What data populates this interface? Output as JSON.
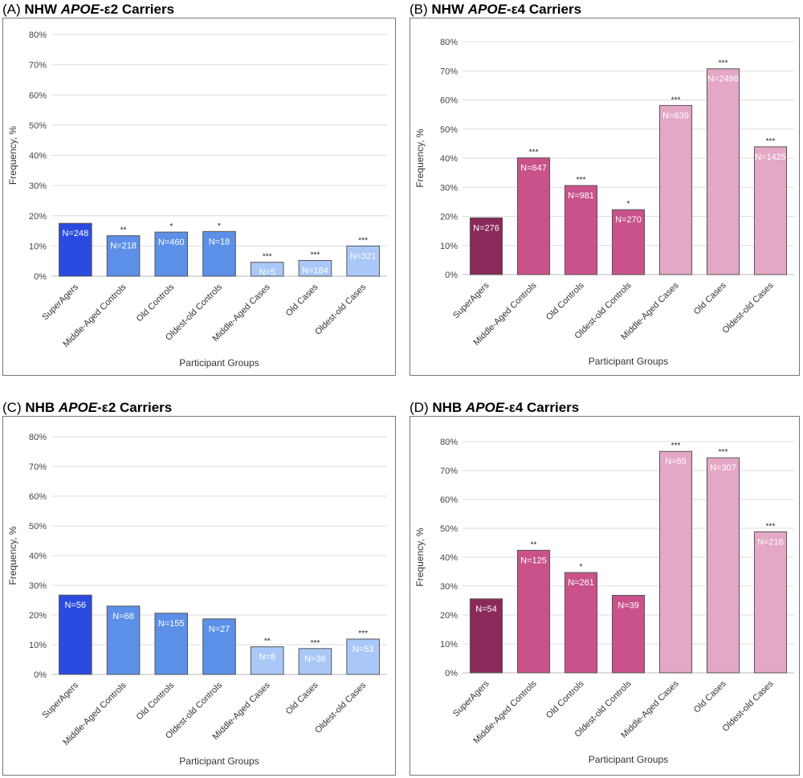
{
  "chart_data": [
    {
      "type": "bar",
      "panel_label": "(A)",
      "title_parts": [
        "NHW",
        "APOE",
        "-ε2 Carriers"
      ],
      "xlabel": "Participant Groups",
      "ylabel": "Frequency, %",
      "ylim": [
        0,
        80
      ],
      "yticks": [
        "0%",
        "10%",
        "20%",
        "30%",
        "40%",
        "50%",
        "60%",
        "70%",
        "80%"
      ],
      "grid": true,
      "categories": [
        "SuperAgers",
        "Middle-Aged Controls",
        "Old Controls",
        "Oldest-old Controls",
        "Middle-Aged Cases",
        "Old Cases",
        "Oldest-old Cases"
      ],
      "values": [
        17.5,
        13.4,
        14.6,
        14.8,
        4.6,
        5.2,
        10.0
      ],
      "n_labels": [
        "N=248",
        "N=218",
        "N=460",
        "N=18",
        "N=5",
        "N=184",
        "N=321"
      ],
      "significance": [
        "",
        "**",
        "*",
        "*",
        "***",
        "***",
        "***"
      ],
      "colors": [
        "#2b4be0",
        "#5c90e8",
        "#5c90e8",
        "#5c90e8",
        "#a9c8f8",
        "#a9c8f8",
        "#a9c8f8"
      ]
    },
    {
      "type": "bar",
      "panel_label": "(B)",
      "title_parts": [
        "NHW",
        "APOE",
        "-ε4 Carriers"
      ],
      "xlabel": "Participant Groups",
      "ylabel": "Frequency, %",
      "ylim": [
        0,
        80
      ],
      "yticks": [
        "0%",
        "10%",
        "20%",
        "30%",
        "40%",
        "50%",
        "60%",
        "70%",
        "80%"
      ],
      "grid": true,
      "categories": [
        "SuperAgers",
        "Middle-Aged Controls",
        "Old Controls",
        "Oldest-old Controls",
        "Middle-Aged Cases",
        "Old Cases",
        "Oldest-old Cases"
      ],
      "values": [
        19.5,
        40.1,
        30.6,
        22.3,
        58.1,
        70.7,
        43.9
      ],
      "n_labels": [
        "N=276",
        "N=647",
        "N=981",
        "N=270",
        "N=639",
        "N=2496",
        "N=1425"
      ],
      "significance": [
        "",
        "***",
        "***",
        "*",
        "***",
        "***",
        "***"
      ],
      "colors": [
        "#8a2a5a",
        "#c9528b",
        "#c9528b",
        "#c9528b",
        "#e4a7c5",
        "#e4a7c5",
        "#e4a7c5"
      ]
    },
    {
      "type": "bar",
      "panel_label": "(C)",
      "title_parts": [
        "NHB",
        "APOE",
        "-ε2 Carriers"
      ],
      "xlabel": "Participant Groups",
      "ylabel": "Frequency, %",
      "ylim": [
        0,
        80
      ],
      "yticks": [
        "0%",
        "10%",
        "20%",
        "30%",
        "40%",
        "50%",
        "60%",
        "70%",
        "80%"
      ],
      "grid": true,
      "categories": [
        "SuperAgers",
        "Middle-Aged Controls",
        "Old Controls",
        "Oldest-old Controls",
        "Middle-Aged Cases",
        "Old Cases",
        "Oldest-old Cases"
      ],
      "values": [
        26.7,
        23.0,
        20.6,
        18.7,
        9.3,
        8.7,
        11.9
      ],
      "n_labels": [
        "N=56",
        "N=68",
        "N=155",
        "N=27",
        "N=8",
        "N=36",
        "N=53"
      ],
      "significance": [
        "",
        "",
        "",
        "",
        "**",
        "***",
        "***"
      ],
      "colors": [
        "#2b4be0",
        "#5c90e8",
        "#5c90e8",
        "#5c90e8",
        "#a9c8f8",
        "#a9c8f8",
        "#a9c8f8"
      ]
    },
    {
      "type": "bar",
      "panel_label": "(D)",
      "title_parts": [
        "NHB",
        "APOE",
        "-ε4 Carriers"
      ],
      "xlabel": "Participant Groups",
      "ylabel": "Frequency, %",
      "ylim": [
        0,
        80
      ],
      "yticks": [
        "0%",
        "10%",
        "20%",
        "30%",
        "40%",
        "50%",
        "60%",
        "70%",
        "80%"
      ],
      "grid": true,
      "categories": [
        "SuperAgers",
        "Middle-Aged Controls",
        "Old Controls",
        "Oldest-old Controls",
        "Middle-Aged Cases",
        "Old Cases",
        "Oldest-old Cases"
      ],
      "values": [
        25.6,
        42.4,
        34.7,
        26.8,
        76.6,
        74.4,
        48.8
      ],
      "n_labels": [
        "N=54",
        "N=125",
        "N=261",
        "N=39",
        "N=65",
        "N=307",
        "N=216"
      ],
      "significance": [
        "",
        "**",
        "*",
        "",
        "***",
        "***",
        "***"
      ],
      "colors": [
        "#8a2a5a",
        "#c9528b",
        "#c9528b",
        "#c9528b",
        "#e4a7c5",
        "#e4a7c5",
        "#e4a7c5"
      ]
    }
  ]
}
